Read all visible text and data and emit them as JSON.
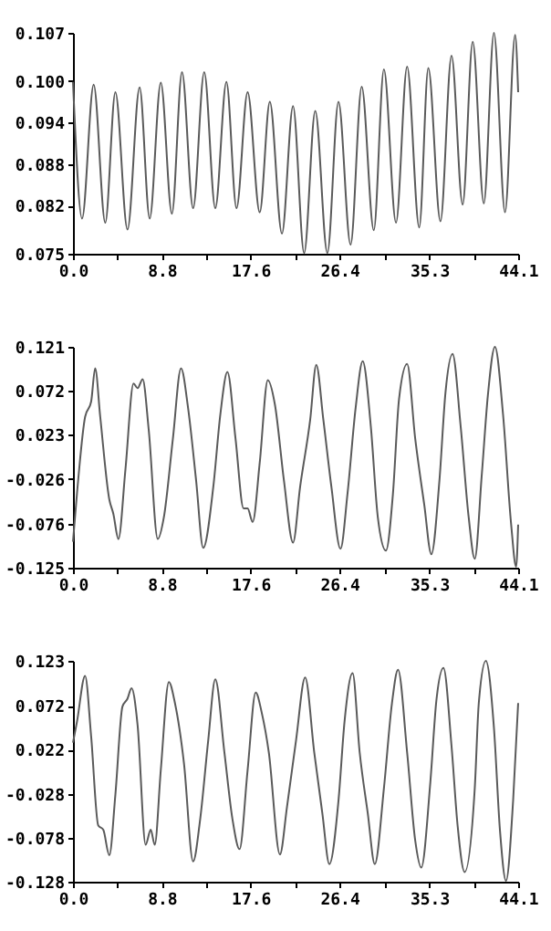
{
  "chart_data": [
    {
      "type": "line",
      "xlim": [
        0,
        44.1
      ],
      "ylim": [
        0.075,
        0.107
      ],
      "xticks": [
        {
          "value": 0,
          "label": "0.0"
        },
        {
          "value": 4.41,
          "label": null
        },
        8.8,
        {
          "value": 13.2,
          "label": null
        },
        17.6,
        {
          "value": 22.0,
          "label": null
        },
        26.4,
        {
          "value": 30.9,
          "label": null
        },
        35.3,
        {
          "value": 39.7,
          "label": null
        },
        44.1
      ],
      "yticks": [
        0.075,
        0.082,
        0.088,
        0.094,
        {
          "value": 0.1,
          "label": "0.100"
        },
        0.107
      ],
      "series": [
        {
          "color": "#5a5a5a",
          "x": [
            0,
            0.9,
            2.05,
            3.2,
            4.2,
            5.4,
            6.6,
            7.6,
            8.7,
            9.8,
            10.8,
            11.9,
            13.0,
            14.1,
            15.2,
            16.2,
            17.3,
            18.5,
            19.5,
            20.7,
            21.8,
            22.9,
            24.0,
            25.2,
            26.3,
            27.5,
            28.6,
            29.8,
            30.8,
            32.0,
            33.1,
            34.3,
            35.2,
            36.4,
            37.5,
            38.6,
            39.6,
            40.7,
            41.7,
            42.8,
            43.8,
            44.1
          ],
          "values": [
            0.0999,
            0.0801,
            0.0995,
            0.0795,
            0.0984,
            0.0785,
            0.0991,
            0.0801,
            0.0998,
            0.0808,
            0.1013,
            0.0816,
            0.1013,
            0.0816,
            0.0999,
            0.0816,
            0.0984,
            0.081,
            0.097,
            0.0779,
            0.0964,
            0.0751,
            0.0957,
            0.0751,
            0.097,
            0.0763,
            0.0992,
            0.0784,
            0.1017,
            0.0795,
            0.1021,
            0.0788,
            0.1019,
            0.0797,
            0.1037,
            0.0821,
            0.1057,
            0.0823,
            0.107,
            0.081,
            0.1067,
            0.0984
          ]
        }
      ]
    },
    {
      "type": "line",
      "xlim": [
        0,
        44.1
      ],
      "ylim": [
        -0.125,
        0.121
      ],
      "xticks": [
        {
          "value": 0,
          "label": "0.0"
        },
        {
          "value": 4.41,
          "label": null
        },
        8.8,
        {
          "value": 13.2,
          "label": null
        },
        17.6,
        {
          "value": 22.0,
          "label": null
        },
        26.4,
        {
          "value": 30.9,
          "label": null
        },
        35.3,
        {
          "value": 39.7,
          "label": null
        },
        44.1
      ],
      "yticks": [
        -0.125,
        -0.076,
        -0.026,
        0.023,
        0.072,
        0.121
      ],
      "series": [
        {
          "color": "#5a5a5a",
          "x": [
            0,
            0.4,
            1.2,
            1.8,
            2.2,
            2.7,
            3.6,
            4.0,
            4.5,
            5.2,
            6.0,
            6.4,
            6.9,
            7.5,
            8.4,
            9.0,
            9.9,
            10.7,
            11.4,
            12.2,
            12.9,
            13.9,
            14.6,
            15.3,
            16.1,
            16.9,
            17.3,
            17.8,
            18.5,
            19.3,
            20.0,
            20.9,
            21.8,
            22.5,
            23.5,
            24.1,
            24.8,
            25.6,
            26.5,
            27.2,
            28.0,
            28.7,
            29.5,
            30.2,
            31.0,
            31.7,
            32.3,
            33.1,
            33.9,
            34.8,
            35.5,
            36.3,
            36.9,
            37.6,
            38.4,
            39.2,
            39.8,
            40.5,
            41.1,
            41.8,
            42.6,
            43.4,
            43.9,
            44.1
          ],
          "values": [
            -0.096,
            -0.042,
            0.043,
            0.06,
            0.097,
            0.043,
            -0.049,
            -0.065,
            -0.093,
            -0.015,
            0.08,
            0.075,
            0.085,
            0.029,
            -0.093,
            -0.069,
            0.019,
            0.097,
            0.053,
            -0.028,
            -0.103,
            -0.035,
            0.046,
            0.093,
            0.019,
            -0.059,
            -0.059,
            -0.074,
            -0.008,
            0.084,
            0.057,
            -0.028,
            -0.097,
            -0.035,
            0.04,
            0.101,
            0.04,
            -0.035,
            -0.104,
            -0.042,
            0.053,
            0.105,
            0.033,
            -0.069,
            -0.106,
            -0.042,
            0.063,
            0.102,
            0.019,
            -0.055,
            -0.11,
            -0.028,
            0.07,
            0.113,
            0.033,
            -0.069,
            -0.115,
            -0.021,
            0.067,
            0.121,
            0.046,
            -0.076,
            -0.124,
            -0.077
          ]
        }
      ]
    },
    {
      "type": "line",
      "xlim": [
        0,
        44.1
      ],
      "ylim": [
        -0.128,
        0.123
      ],
      "xticks": [
        {
          "value": 0,
          "label": "0.0"
        },
        {
          "value": 4.41,
          "label": null
        },
        8.8,
        {
          "value": 13.2,
          "label": null
        },
        17.6,
        {
          "value": 22.0,
          "label": null
        },
        26.4,
        {
          "value": 30.9,
          "label": null
        },
        35.3,
        {
          "value": 39.7,
          "label": null
        },
        44.1
      ],
      "yticks": [
        -0.128,
        -0.078,
        -0.028,
        0.022,
        0.072,
        0.123
      ],
      "series": [
        {
          "color": "#5a5a5a",
          "x": [
            0,
            0.4,
            1.2,
            1.8,
            2.5,
            3.0,
            3.6,
            4.2,
            4.9,
            5.4,
            5.8,
            6.4,
            7.2,
            7.7,
            8.1,
            8.7,
            9.5,
            10.1,
            11.0,
            11.9,
            12.6,
            13.4,
            14.1,
            15.0,
            15.8,
            16.5,
            17.3,
            18.1,
            18.7,
            19.4,
            20.5,
            21.2,
            22.1,
            23.0,
            23.9,
            24.7,
            25.4,
            26.3,
            26.9,
            27.7,
            28.4,
            29.2,
            29.9,
            30.8,
            31.6,
            32.2,
            33.1,
            33.9,
            34.5,
            35.4,
            36.0,
            36.7,
            37.5,
            38.1,
            38.8,
            39.8,
            40.2,
            40.9,
            41.7,
            42.3,
            42.9,
            43.6,
            44.1
          ],
          "values": [
            0.03,
            0.054,
            0.106,
            0.037,
            -0.064,
            -0.069,
            -0.098,
            -0.029,
            0.071,
            0.08,
            0.092,
            0.05,
            -0.086,
            -0.069,
            -0.086,
            -0.001,
            0.099,
            0.075,
            0.006,
            -0.105,
            -0.057,
            0.033,
            0.102,
            0.019,
            -0.057,
            -0.091,
            -0.001,
            0.087,
            0.064,
            0.019,
            -0.097,
            -0.043,
            0.033,
            0.104,
            0.019,
            -0.05,
            -0.108,
            -0.036,
            0.054,
            0.109,
            0.019,
            -0.05,
            -0.108,
            -0.022,
            0.075,
            0.113,
            0.019,
            -0.081,
            -0.112,
            -0.015,
            0.078,
            0.115,
            0.026,
            -0.064,
            -0.117,
            -0.022,
            0.075,
            0.123,
            0.047,
            -0.07,
            -0.127,
            -0.036,
            0.075
          ]
        }
      ]
    }
  ]
}
